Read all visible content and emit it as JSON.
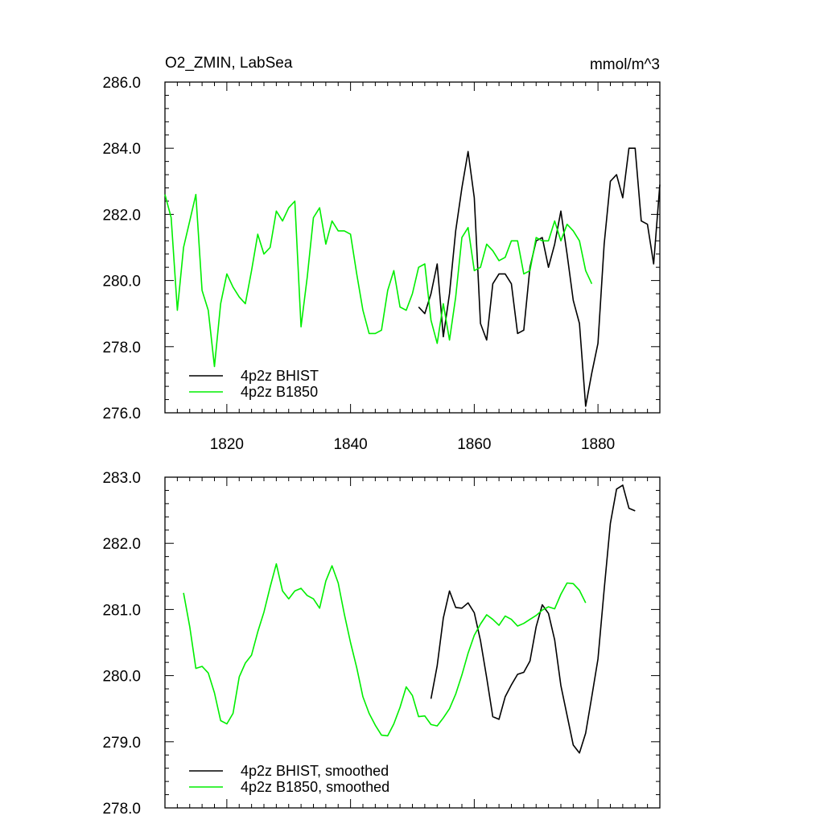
{
  "title_left": "O2_ZMIN, LabSea",
  "title_right": "mmol/m^3",
  "colors": {
    "bhist": "#000000",
    "b1850": "#00ee00",
    "frame": "#000000"
  },
  "chart_data": [
    {
      "type": "line",
      "name": "top-panel",
      "xlim": [
        1810,
        1890
      ],
      "ylim": [
        276,
        286
      ],
      "xticks": [
        1820,
        1840,
        1860,
        1880
      ],
      "xtick_labels": [
        "1820",
        "1840",
        "1860",
        "1880"
      ],
      "yticks": [
        276,
        278,
        280,
        282,
        284,
        286
      ],
      "ytick_labels": [
        "276.0",
        "278.0",
        "280.0",
        "282.0",
        "284.0",
        "286.0"
      ],
      "legend_location": "bottom-left",
      "series": [
        {
          "name": "4p2z BHIST",
          "key": "bhist",
          "x0": 1851,
          "values": [
            279.2,
            279.0,
            279.6,
            280.5,
            278.3,
            279.6,
            281.5,
            282.8,
            283.9,
            282.5,
            278.7,
            278.2,
            279.9,
            280.2,
            280.2,
            279.9,
            278.4,
            278.5,
            280.4,
            281.2,
            281.3,
            280.4,
            281.1,
            282.1,
            280.8,
            279.4,
            278.7,
            276.2,
            277.2,
            278.1,
            281.1,
            283.0,
            283.2,
            282.5,
            284.0,
            284.0,
            281.8,
            281.7,
            280.5,
            282.9
          ]
        },
        {
          "name": "4p2z B1850",
          "key": "b1850",
          "x0": 1810,
          "values": [
            282.6,
            281.9,
            279.1,
            281.0,
            281.8,
            282.6,
            279.7,
            279.1,
            277.4,
            279.3,
            280.2,
            279.8,
            279.5,
            279.3,
            280.3,
            281.4,
            280.8,
            281.0,
            282.1,
            281.8,
            282.2,
            282.4,
            278.6,
            280.1,
            281.9,
            282.2,
            281.1,
            281.8,
            281.5,
            281.5,
            281.4,
            280.2,
            279.1,
            278.4,
            278.4,
            278.5,
            279.7,
            280.3,
            279.2,
            279.1,
            279.6,
            280.4,
            280.5,
            278.8,
            278.1,
            279.3,
            278.2,
            279.5,
            281.3,
            281.6,
            280.3,
            280.4,
            281.1,
            280.9,
            280.6,
            280.7,
            281.2,
            281.2,
            280.2,
            280.3,
            281.3,
            281.2,
            281.2,
            281.8,
            281.2,
            281.7,
            281.5,
            281.2,
            280.3,
            279.9
          ]
        }
      ]
    },
    {
      "type": "line",
      "name": "bottom-panel",
      "xlim": [
        1810,
        1890
      ],
      "ylim": [
        278,
        283
      ],
      "xticks": [
        1820,
        1840,
        1860,
        1880
      ],
      "yticks": [
        278,
        279,
        280,
        281,
        282,
        283
      ],
      "ytick_labels": [
        "278.0",
        "279.0",
        "280.0",
        "281.0",
        "282.0",
        "283.0"
      ],
      "legend_location": "bottom-left",
      "series": [
        {
          "name": "4p2z BHIST, smoothed",
          "key": "bhist",
          "x0": 1853,
          "values": [
            279.65,
            280.15,
            280.87,
            281.28,
            281.03,
            281.02,
            281.1,
            280.95,
            280.53,
            279.97,
            279.38,
            279.34,
            279.68,
            279.86,
            280.02,
            280.05,
            280.22,
            280.74,
            281.07,
            280.94,
            280.54,
            279.85,
            279.4,
            278.95,
            278.83,
            279.13,
            279.68,
            280.25,
            281.3,
            282.3,
            282.82,
            282.88,
            282.53,
            282.49
          ]
        },
        {
          "name": "4p2z B1850, smoothed",
          "key": "b1850",
          "x0": 1813,
          "values": [
            281.25,
            280.74,
            280.11,
            280.14,
            280.04,
            279.74,
            279.32,
            279.27,
            279.43,
            279.98,
            280.19,
            280.31,
            280.66,
            280.96,
            281.34,
            281.69,
            281.28,
            281.16,
            281.28,
            281.32,
            281.21,
            281.16,
            281.02,
            281.43,
            281.66,
            281.4,
            280.93,
            280.5,
            280.12,
            279.68,
            279.43,
            279.25,
            279.1,
            279.09,
            279.27,
            279.52,
            279.83,
            279.7,
            279.38,
            279.39,
            279.26,
            279.24,
            279.36,
            279.5,
            279.72,
            280.01,
            280.34,
            280.61,
            280.78,
            280.92,
            280.85,
            280.76,
            280.9,
            280.85,
            280.75,
            280.79,
            280.85,
            280.91,
            280.99,
            281.04,
            281.01,
            281.23,
            281.4,
            281.39,
            281.29,
            281.1
          ]
        }
      ]
    }
  ]
}
